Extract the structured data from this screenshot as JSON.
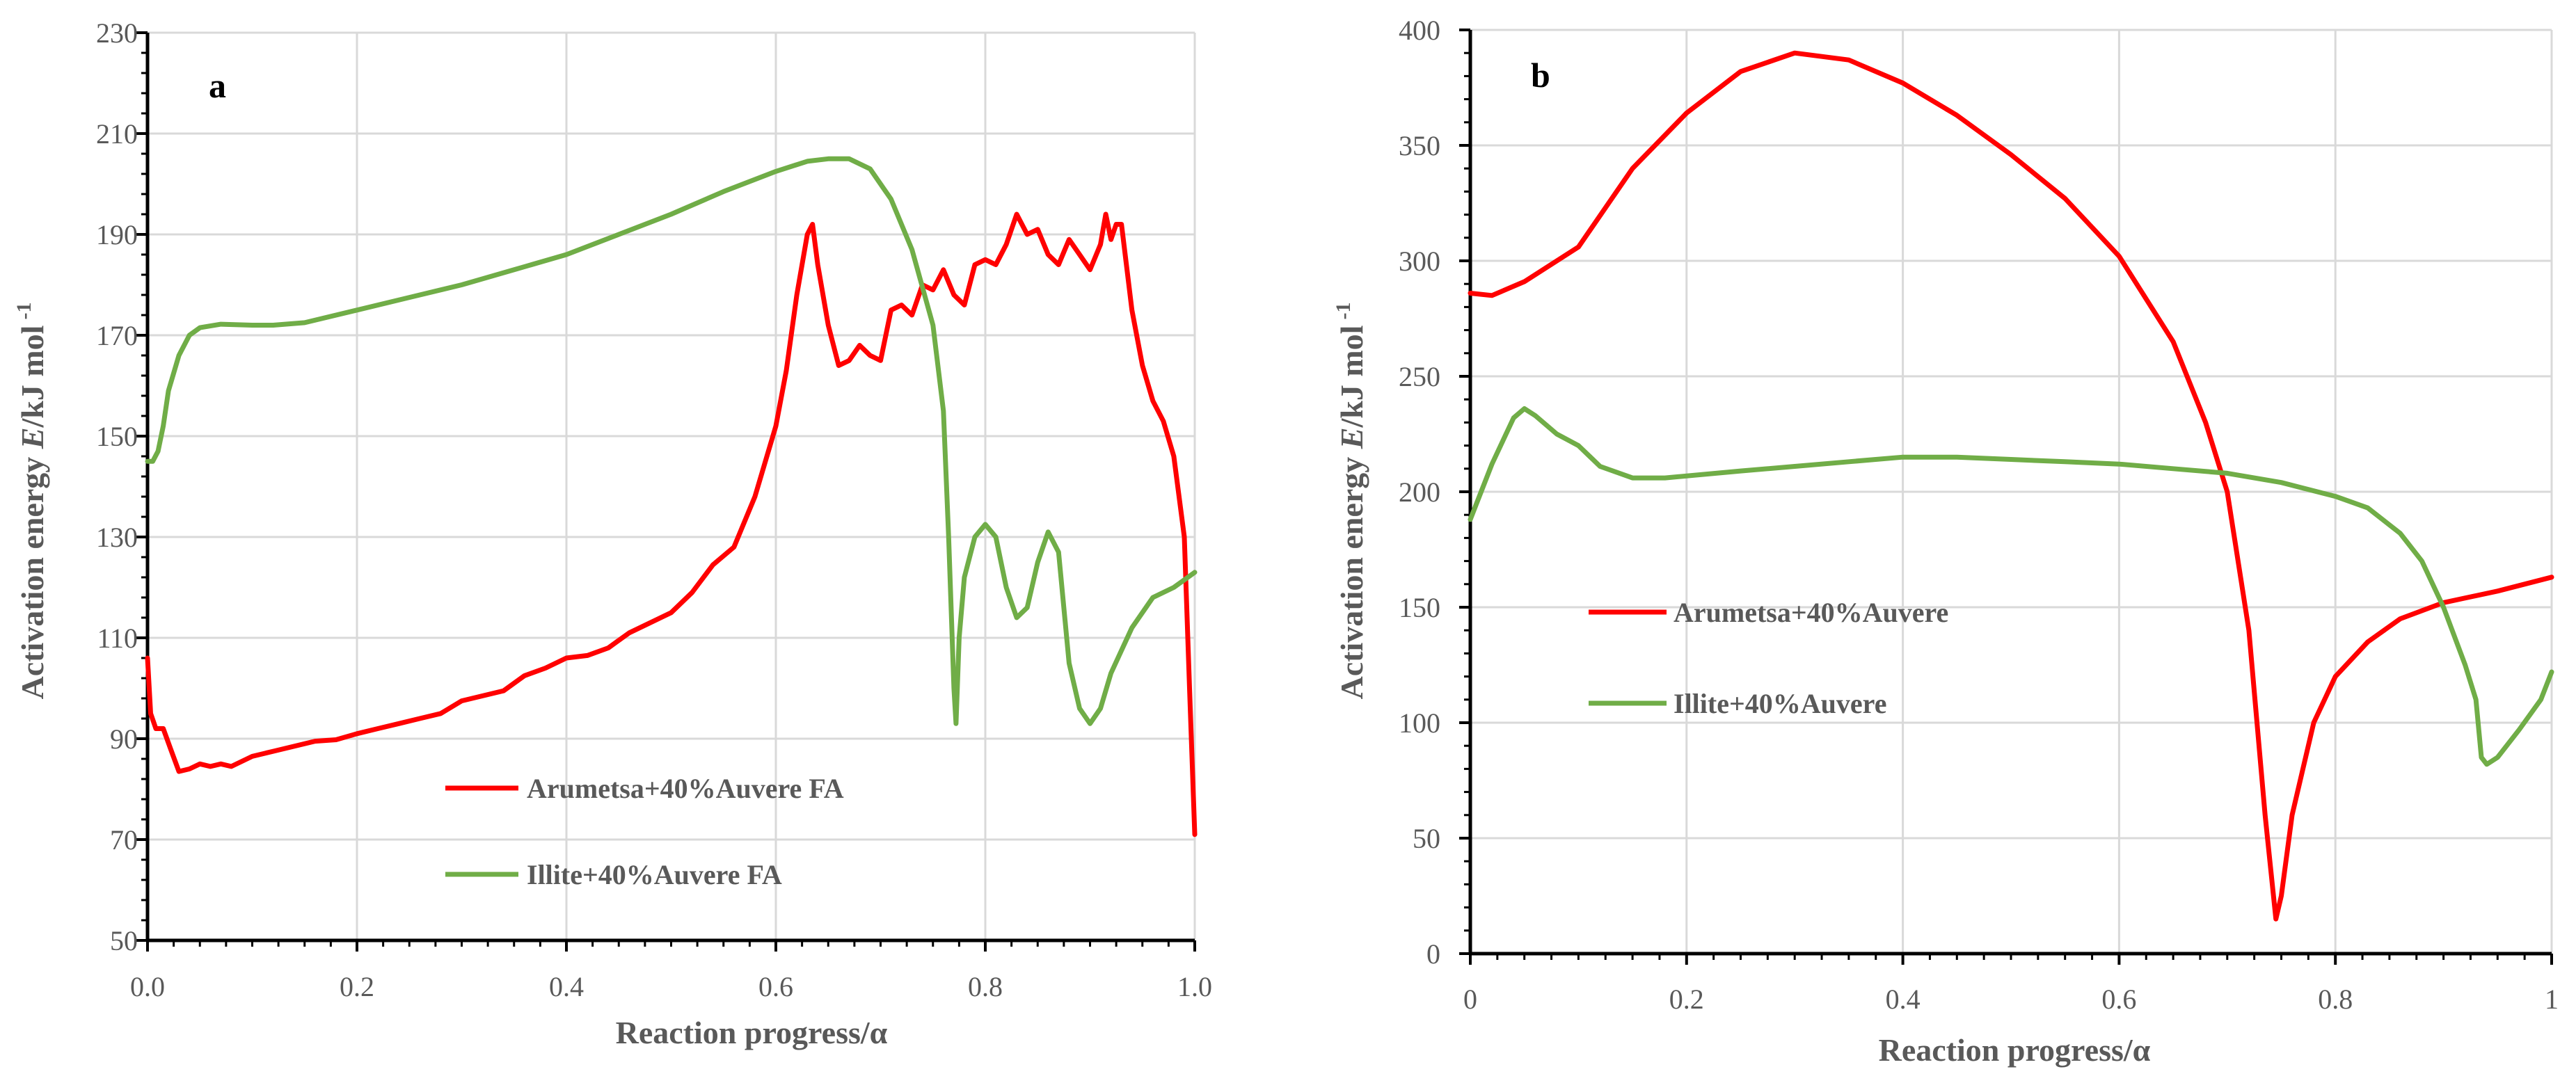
{
  "chart_data": [
    {
      "id": "a",
      "type": "line",
      "panel_label": "a",
      "xlabel": "Reaction progress/α",
      "ylabel": {
        "pre": "Activation energy ",
        "italic": "E",
        "post": "/kJ mol",
        "sup": "-1"
      },
      "xlim": [
        0,
        1
      ],
      "ylim": [
        50,
        230
      ],
      "xticks": [
        "0.0",
        "0.2",
        "0.4",
        "0.6",
        "0.8",
        "1.0"
      ],
      "xtick_values": [
        0,
        0.2,
        0.4,
        0.6,
        0.8,
        1.0
      ],
      "yticks": [
        "50",
        "70",
        "90",
        "110",
        "130",
        "150",
        "170",
        "190",
        "210",
        "230"
      ],
      "ytick_values": [
        50,
        70,
        90,
        110,
        130,
        150,
        170,
        190,
        210,
        230
      ],
      "grid": true,
      "series": [
        {
          "name": "Arumetsa+40%Auvere FA",
          "color": "#ff0000",
          "points": [
            [
              0.0,
              106
            ],
            [
              0.003,
              95
            ],
            [
              0.008,
              92
            ],
            [
              0.015,
              92
            ],
            [
              0.022,
              88
            ],
            [
              0.03,
              83.5
            ],
            [
              0.04,
              84
            ],
            [
              0.05,
              85
            ],
            [
              0.06,
              84.5
            ],
            [
              0.07,
              85
            ],
            [
              0.08,
              84.5
            ],
            [
              0.1,
              86.5
            ],
            [
              0.12,
              87.5
            ],
            [
              0.14,
              88.5
            ],
            [
              0.16,
              89.5
            ],
            [
              0.18,
              89.8
            ],
            [
              0.2,
              91
            ],
            [
              0.22,
              92
            ],
            [
              0.24,
              93
            ],
            [
              0.26,
              94
            ],
            [
              0.28,
              95
            ],
            [
              0.3,
              97.5
            ],
            [
              0.32,
              98.5
            ],
            [
              0.34,
              99.5
            ],
            [
              0.36,
              102.5
            ],
            [
              0.38,
              104
            ],
            [
              0.4,
              106
            ],
            [
              0.42,
              106.5
            ],
            [
              0.44,
              108
            ],
            [
              0.46,
              111
            ],
            [
              0.48,
              113
            ],
            [
              0.5,
              115
            ],
            [
              0.52,
              119
            ],
            [
              0.54,
              124.5
            ],
            [
              0.56,
              128
            ],
            [
              0.58,
              138
            ],
            [
              0.6,
              152
            ],
            [
              0.61,
              163
            ],
            [
              0.62,
              178
            ],
            [
              0.63,
              190
            ],
            [
              0.635,
              192
            ],
            [
              0.64,
              184
            ],
            [
              0.65,
              172
            ],
            [
              0.66,
              164
            ],
            [
              0.67,
              165
            ],
            [
              0.68,
              168
            ],
            [
              0.69,
              166
            ],
            [
              0.7,
              165
            ],
            [
              0.71,
              175
            ],
            [
              0.72,
              176
            ],
            [
              0.73,
              174
            ],
            [
              0.74,
              180
            ],
            [
              0.75,
              179
            ],
            [
              0.76,
              183
            ],
            [
              0.77,
              178
            ],
            [
              0.78,
              176
            ],
            [
              0.79,
              184
            ],
            [
              0.8,
              185
            ],
            [
              0.81,
              184
            ],
            [
              0.82,
              188
            ],
            [
              0.83,
              194
            ],
            [
              0.84,
              190
            ],
            [
              0.85,
              191
            ],
            [
              0.86,
              186
            ],
            [
              0.87,
              184
            ],
            [
              0.88,
              189
            ],
            [
              0.89,
              186
            ],
            [
              0.9,
              183
            ],
            [
              0.91,
              188
            ],
            [
              0.915,
              194
            ],
            [
              0.92,
              189
            ],
            [
              0.925,
              192
            ],
            [
              0.93,
              192
            ],
            [
              0.94,
              175
            ],
            [
              0.95,
              164
            ],
            [
              0.96,
              157
            ],
            [
              0.97,
              153
            ],
            [
              0.98,
              146
            ],
            [
              0.99,
              130
            ],
            [
              0.995,
              100
            ],
            [
              1.0,
              71
            ]
          ]
        },
        {
          "name": "Illite+40%Auvere FA",
          "color": "#70ad47",
          "points": [
            [
              0.0,
              145
            ],
            [
              0.005,
              145
            ],
            [
              0.01,
              147
            ],
            [
              0.015,
              152
            ],
            [
              0.02,
              159
            ],
            [
              0.03,
              166
            ],
            [
              0.04,
              170
            ],
            [
              0.05,
              171.5
            ],
            [
              0.07,
              172.2
            ],
            [
              0.1,
              172
            ],
            [
              0.12,
              172
            ],
            [
              0.15,
              172.5
            ],
            [
              0.2,
              175
            ],
            [
              0.25,
              177.5
            ],
            [
              0.3,
              180
            ],
            [
              0.35,
              183
            ],
            [
              0.4,
              186
            ],
            [
              0.45,
              190
            ],
            [
              0.5,
              194
            ],
            [
              0.55,
              198.5
            ],
            [
              0.6,
              202.5
            ],
            [
              0.63,
              204.5
            ],
            [
              0.65,
              205
            ],
            [
              0.67,
              205
            ],
            [
              0.69,
              203
            ],
            [
              0.71,
              197
            ],
            [
              0.73,
              187
            ],
            [
              0.75,
              172
            ],
            [
              0.76,
              155
            ],
            [
              0.765,
              130
            ],
            [
              0.77,
              100
            ],
            [
              0.772,
              93
            ],
            [
              0.775,
              110
            ],
            [
              0.78,
              122
            ],
            [
              0.79,
              130
            ],
            [
              0.8,
              132.5
            ],
            [
              0.81,
              130
            ],
            [
              0.82,
              120
            ],
            [
              0.83,
              114
            ],
            [
              0.84,
              116
            ],
            [
              0.85,
              125
            ],
            [
              0.86,
              131
            ],
            [
              0.87,
              127
            ],
            [
              0.88,
              105
            ],
            [
              0.89,
              96
            ],
            [
              0.9,
              93
            ],
            [
              0.91,
              96
            ],
            [
              0.92,
              103
            ],
            [
              0.94,
              112
            ],
            [
              0.96,
              118
            ],
            [
              0.98,
              120
            ],
            [
              1.0,
              123
            ]
          ]
        }
      ],
      "legend": {
        "position": "bottom-center"
      }
    },
    {
      "id": "b",
      "type": "line",
      "panel_label": "b",
      "xlabel": "Reaction progress/α",
      "ylabel": {
        "pre": "Activation energy ",
        "italic": "E",
        "post": "/kJ mol",
        "sup": "-1"
      },
      "xlim": [
        0,
        1
      ],
      "ylim": [
        0,
        400
      ],
      "xticks": [
        "0",
        "0.2",
        "0.4",
        "0.6",
        "0.8",
        "1"
      ],
      "xtick_values": [
        0,
        0.2,
        0.4,
        0.6,
        0.8,
        1.0
      ],
      "yticks": [
        "0",
        "50",
        "100",
        "150",
        "200",
        "250",
        "300",
        "350",
        "400"
      ],
      "ytick_values": [
        0,
        50,
        100,
        150,
        200,
        250,
        300,
        350,
        400
      ],
      "grid": true,
      "series": [
        {
          "name": "Arumetsa+40%Auvere",
          "color": "#ff0000",
          "points": [
            [
              0.0,
              286
            ],
            [
              0.02,
              285
            ],
            [
              0.05,
              291
            ],
            [
              0.1,
              306
            ],
            [
              0.15,
              340
            ],
            [
              0.2,
              364
            ],
            [
              0.25,
              382
            ],
            [
              0.3,
              390
            ],
            [
              0.35,
              387
            ],
            [
              0.4,
              377
            ],
            [
              0.45,
              363
            ],
            [
              0.5,
              346
            ],
            [
              0.55,
              327
            ],
            [
              0.6,
              302
            ],
            [
              0.65,
              265
            ],
            [
              0.68,
              230
            ],
            [
              0.7,
              200
            ],
            [
              0.72,
              140
            ],
            [
              0.735,
              60
            ],
            [
              0.745,
              15
            ],
            [
              0.75,
              25
            ],
            [
              0.76,
              60
            ],
            [
              0.78,
              100
            ],
            [
              0.8,
              120
            ],
            [
              0.83,
              135
            ],
            [
              0.86,
              145
            ],
            [
              0.9,
              152
            ],
            [
              0.95,
              157
            ],
            [
              1.0,
              163
            ]
          ]
        },
        {
          "name": "Illite+40%Auvere",
          "color": "#70ad47",
          "points": [
            [
              0.0,
              188
            ],
            [
              0.02,
              212
            ],
            [
              0.04,
              232
            ],
            [
              0.05,
              236
            ],
            [
              0.06,
              233
            ],
            [
              0.08,
              225
            ],
            [
              0.1,
              220
            ],
            [
              0.12,
              211
            ],
            [
              0.15,
              206
            ],
            [
              0.18,
              206
            ],
            [
              0.25,
              209
            ],
            [
              0.3,
              211
            ],
            [
              0.35,
              213
            ],
            [
              0.4,
              215
            ],
            [
              0.45,
              215
            ],
            [
              0.5,
              214
            ],
            [
              0.55,
              213
            ],
            [
              0.6,
              212
            ],
            [
              0.65,
              210
            ],
            [
              0.7,
              208
            ],
            [
              0.75,
              204
            ],
            [
              0.8,
              198
            ],
            [
              0.83,
              193
            ],
            [
              0.86,
              182
            ],
            [
              0.88,
              170
            ],
            [
              0.9,
              150
            ],
            [
              0.92,
              125
            ],
            [
              0.93,
              110
            ],
            [
              0.935,
              85
            ],
            [
              0.94,
              82
            ],
            [
              0.95,
              85
            ],
            [
              0.97,
              97
            ],
            [
              0.99,
              110
            ],
            [
              1.0,
              122
            ]
          ]
        }
      ],
      "legend": {
        "position": "center-left"
      }
    }
  ]
}
